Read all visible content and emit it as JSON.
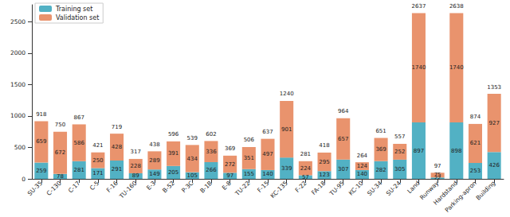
{
  "chart_data": {
    "type": "bar",
    "stacked": true,
    "data_labels": true,
    "grid": false,
    "legend": "upper left",
    "categories": [
      "SU-35",
      "C-130",
      "C-17",
      "C-5",
      "F-16",
      "TU-160",
      "E-3",
      "B-52",
      "P-3C",
      "B-1B",
      "E-8",
      "TU-22",
      "F-15",
      "KC-135",
      "F-22",
      "FA-18",
      "TU-95",
      "KC-10",
      "SU-34",
      "SU-24",
      "Land",
      "Runway",
      "Hardstand",
      "Parking-apron",
      "Building"
    ],
    "series": [
      {
        "name": "Training set",
        "color": "#52b1c4",
        "values": [
          259,
          78,
          281,
          171,
          291,
          89,
          149,
          205,
          105,
          266,
          97,
          155,
          140,
          339,
          57,
          123,
          307,
          140,
          282,
          305,
          897,
          22,
          898,
          253,
          426
        ]
      },
      {
        "name": "Validation set",
        "color": "#e9936d",
        "values": [
          659,
          672,
          586,
          250,
          428,
          228,
          289,
          391,
          434,
          336,
          272,
          351,
          497,
          901,
          224,
          295,
          657,
          124,
          369,
          252,
          1740,
          75,
          1740,
          621,
          927
        ]
      }
    ],
    "totals": [
      918,
      750,
      867,
      421,
      719,
      317,
      438,
      596,
      539,
      602,
      369,
      506,
      637,
      1240,
      281,
      418,
      964,
      264,
      651,
      557,
      2637,
      97,
      2638,
      874,
      1353
    ],
    "ylim": [
      0,
      2770
    ],
    "yticks": [
      0,
      500,
      1000,
      1500,
      2000,
      2500
    ]
  }
}
